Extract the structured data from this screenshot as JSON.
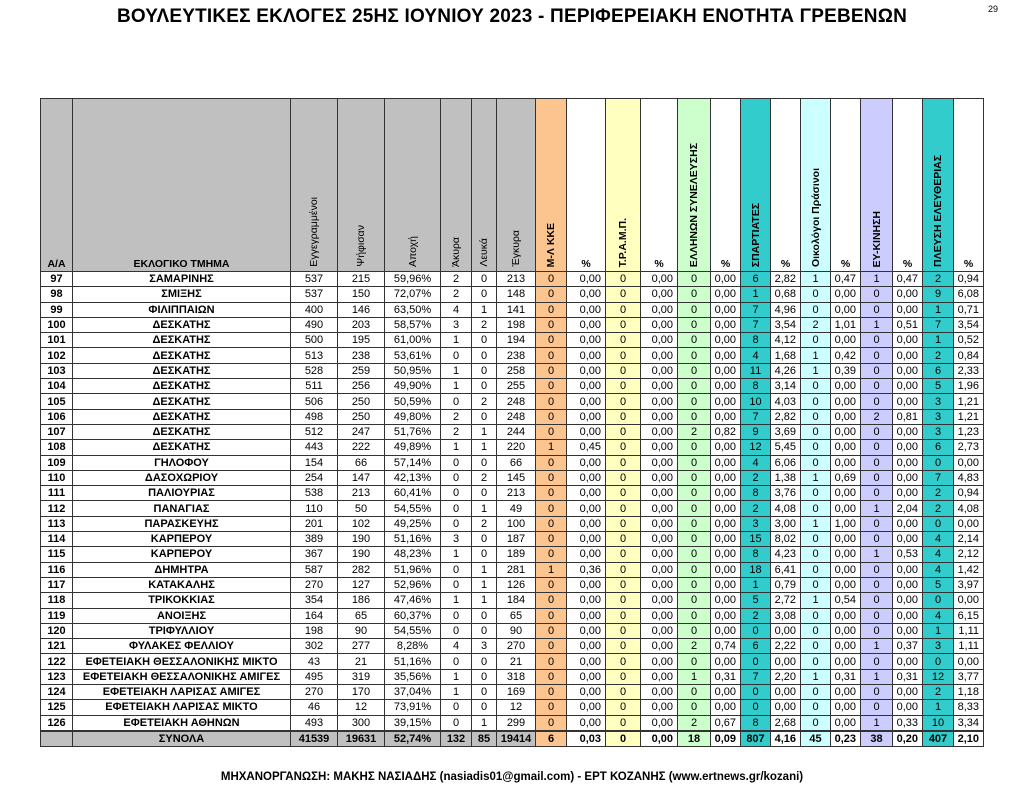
{
  "title": "ΒΟΥΛΕΥΤΙΚΕΣ ΕΚΛΟΓΕΣ 25ΗΣ ΙΟΥΝΙΟΥ 2023 - ΠΕΡΙΦΕΡΕΙΑΚΗ ΕΝΟΤΗΤΑ ΓΡΕΒΕΝΩΝ",
  "page_number": "29",
  "footer": "ΜΗΧΑΝΟΡΓΑΝΩΣΗ: ΜΑΚΗΣ ΝΑΣΙΑΔΗΣ (nasiadis01@gmail.com) - ΕΡΤ ΚΟΖΑΝΗΣ (www.ertnews.gr/kozani)",
  "colors": {
    "header": "#c0c0c0",
    "mlkke": "#fcc48e",
    "tramp": "#ffffc0",
    "ellinon": "#ccffcc",
    "spartiates": "#33cccc",
    "oikologoi": "#ccffff",
    "eykinisi": "#ccccff",
    "pleusi": "#33cccc"
  },
  "headers": [
    "Α/Α",
    "ΕΚΛΟΓΙΚΟ ΤΜΗΜΑ",
    "Εγγεγραμμένοι",
    "Ψήφισαν",
    "Αποχή",
    "Άκυρα",
    "Λευκά",
    "Έγκυρα",
    "Μ-Λ ΚΚΕ",
    "%",
    "Τ.Ρ.Α.Μ.Π.",
    "%",
    "ΕΛΛΗΝΩΝ ΣΥΝΕΛΕΥΣΗΣ",
    "%",
    "ΣΠΑΡΤΙΑΤΕΣ",
    "%",
    "Οικολόγοι Πράσινοι",
    "%",
    "ΕΥ-ΚΙΝΗΣΗ",
    "%",
    "ΠΛΕΥΣΗ ΕΛΕΥΘΕΡΙΑΣ",
    "%"
  ],
  "rows": [
    [
      "97",
      "ΣΑΜΑΡΙΝΗΣ",
      "537",
      "215",
      "59,96%",
      "2",
      "0",
      "213",
      "0",
      "0,00",
      "0",
      "0,00",
      "0",
      "0,00",
      "6",
      "2,82",
      "1",
      "0,47",
      "1",
      "0,47",
      "2",
      "0,94"
    ],
    [
      "98",
      "ΣΜΙΞΗΣ",
      "537",
      "150",
      "72,07%",
      "2",
      "0",
      "148",
      "0",
      "0,00",
      "0",
      "0,00",
      "0",
      "0,00",
      "1",
      "0,68",
      "0",
      "0,00",
      "0",
      "0,00",
      "9",
      "6,08"
    ],
    [
      "99",
      "ΦΙΛΙΠΠΑΙΩΝ",
      "400",
      "146",
      "63,50%",
      "4",
      "1",
      "141",
      "0",
      "0,00",
      "0",
      "0,00",
      "0",
      "0,00",
      "7",
      "4,96",
      "0",
      "0,00",
      "0",
      "0,00",
      "1",
      "0,71"
    ],
    [
      "100",
      "ΔΕΣΚΑΤΗΣ",
      "490",
      "203",
      "58,57%",
      "3",
      "2",
      "198",
      "0",
      "0,00",
      "0",
      "0,00",
      "0",
      "0,00",
      "7",
      "3,54",
      "2",
      "1,01",
      "1",
      "0,51",
      "7",
      "3,54"
    ],
    [
      "101",
      "ΔΕΣΚΑΤΗΣ",
      "500",
      "195",
      "61,00%",
      "1",
      "0",
      "194",
      "0",
      "0,00",
      "0",
      "0,00",
      "0",
      "0,00",
      "8",
      "4,12",
      "0",
      "0,00",
      "0",
      "0,00",
      "1",
      "0,52"
    ],
    [
      "102",
      "ΔΕΣΚΑΤΗΣ",
      "513",
      "238",
      "53,61%",
      "0",
      "0",
      "238",
      "0",
      "0,00",
      "0",
      "0,00",
      "0",
      "0,00",
      "4",
      "1,68",
      "1",
      "0,42",
      "0",
      "0,00",
      "2",
      "0,84"
    ],
    [
      "103",
      "ΔΕΣΚΑΤΗΣ",
      "528",
      "259",
      "50,95%",
      "1",
      "0",
      "258",
      "0",
      "0,00",
      "0",
      "0,00",
      "0",
      "0,00",
      "11",
      "4,26",
      "1",
      "0,39",
      "0",
      "0,00",
      "6",
      "2,33"
    ],
    [
      "104",
      "ΔΕΣΚΑΤΗΣ",
      "511",
      "256",
      "49,90%",
      "1",
      "0",
      "255",
      "0",
      "0,00",
      "0",
      "0,00",
      "0",
      "0,00",
      "8",
      "3,14",
      "0",
      "0,00",
      "0",
      "0,00",
      "5",
      "1,96"
    ],
    [
      "105",
      "ΔΕΣΚΑΤΗΣ",
      "506",
      "250",
      "50,59%",
      "0",
      "2",
      "248",
      "0",
      "0,00",
      "0",
      "0,00",
      "0",
      "0,00",
      "10",
      "4,03",
      "0",
      "0,00",
      "0",
      "0,00",
      "3",
      "1,21"
    ],
    [
      "106",
      "ΔΕΣΚΑΤΗΣ",
      "498",
      "250",
      "49,80%",
      "2",
      "0",
      "248",
      "0",
      "0,00",
      "0",
      "0,00",
      "0",
      "0,00",
      "7",
      "2,82",
      "0",
      "0,00",
      "2",
      "0,81",
      "3",
      "1,21"
    ],
    [
      "107",
      "ΔΕΣΚΑΤΗΣ",
      "512",
      "247",
      "51,76%",
      "2",
      "1",
      "244",
      "0",
      "0,00",
      "0",
      "0,00",
      "2",
      "0,82",
      "9",
      "3,69",
      "0",
      "0,00",
      "0",
      "0,00",
      "3",
      "1,23"
    ],
    [
      "108",
      "ΔΕΣΚΑΤΗΣ",
      "443",
      "222",
      "49,89%",
      "1",
      "1",
      "220",
      "1",
      "0,45",
      "0",
      "0,00",
      "0",
      "0,00",
      "12",
      "5,45",
      "0",
      "0,00",
      "0",
      "0,00",
      "6",
      "2,73"
    ],
    [
      "109",
      "ΓΗΛΟΦΟΥ",
      "154",
      "66",
      "57,14%",
      "0",
      "0",
      "66",
      "0",
      "0,00",
      "0",
      "0,00",
      "0",
      "0,00",
      "4",
      "6,06",
      "0",
      "0,00",
      "0",
      "0,00",
      "0",
      "0,00"
    ],
    [
      "110",
      "ΔΑΣΟΧΩΡΙΟΥ",
      "254",
      "147",
      "42,13%",
      "0",
      "2",
      "145",
      "0",
      "0,00",
      "0",
      "0,00",
      "0",
      "0,00",
      "2",
      "1,38",
      "1",
      "0,69",
      "0",
      "0,00",
      "7",
      "4,83"
    ],
    [
      "111",
      "ΠΑΛΙΟΥΡΙΑΣ",
      "538",
      "213",
      "60,41%",
      "0",
      "0",
      "213",
      "0",
      "0,00",
      "0",
      "0,00",
      "0",
      "0,00",
      "8",
      "3,76",
      "0",
      "0,00",
      "0",
      "0,00",
      "2",
      "0,94"
    ],
    [
      "112",
      "ΠΑΝΑΓΙΑΣ",
      "110",
      "50",
      "54,55%",
      "0",
      "1",
      "49",
      "0",
      "0,00",
      "0",
      "0,00",
      "0",
      "0,00",
      "2",
      "4,08",
      "0",
      "0,00",
      "1",
      "2,04",
      "2",
      "4,08"
    ],
    [
      "113",
      "ΠΑΡΑΣΚΕΥΗΣ",
      "201",
      "102",
      "49,25%",
      "0",
      "2",
      "100",
      "0",
      "0,00",
      "0",
      "0,00",
      "0",
      "0,00",
      "3",
      "3,00",
      "1",
      "1,00",
      "0",
      "0,00",
      "0",
      "0,00"
    ],
    [
      "114",
      "ΚΑΡΠΕΡΟΥ",
      "389",
      "190",
      "51,16%",
      "3",
      "0",
      "187",
      "0",
      "0,00",
      "0",
      "0,00",
      "0",
      "0,00",
      "15",
      "8,02",
      "0",
      "0,00",
      "0",
      "0,00",
      "4",
      "2,14"
    ],
    [
      "115",
      "ΚΑΡΠΕΡΟΥ",
      "367",
      "190",
      "48,23%",
      "1",
      "0",
      "189",
      "0",
      "0,00",
      "0",
      "0,00",
      "0",
      "0,00",
      "8",
      "4,23",
      "0",
      "0,00",
      "1",
      "0,53",
      "4",
      "2,12"
    ],
    [
      "116",
      "ΔΗΜΗΤΡΑ",
      "587",
      "282",
      "51,96%",
      "0",
      "1",
      "281",
      "1",
      "0,36",
      "0",
      "0,00",
      "0",
      "0,00",
      "18",
      "6,41",
      "0",
      "0,00",
      "0",
      "0,00",
      "4",
      "1,42"
    ],
    [
      "117",
      "ΚΑΤΑΚΑΛΗΣ",
      "270",
      "127",
      "52,96%",
      "0",
      "1",
      "126",
      "0",
      "0,00",
      "0",
      "0,00",
      "0",
      "0,00",
      "1",
      "0,79",
      "0",
      "0,00",
      "0",
      "0,00",
      "5",
      "3,97"
    ],
    [
      "118",
      "ΤΡΙΚΟΚΚΙΑΣ",
      "354",
      "186",
      "47,46%",
      "1",
      "1",
      "184",
      "0",
      "0,00",
      "0",
      "0,00",
      "0",
      "0,00",
      "5",
      "2,72",
      "1",
      "0,54",
      "0",
      "0,00",
      "0",
      "0,00"
    ],
    [
      "119",
      "ΑΝΟΙΞΗΣ",
      "164",
      "65",
      "60,37%",
      "0",
      "0",
      "65",
      "0",
      "0,00",
      "0",
      "0,00",
      "0",
      "0,00",
      "2",
      "3,08",
      "0",
      "0,00",
      "0",
      "0,00",
      "4",
      "6,15"
    ],
    [
      "120",
      "ΤΡΙΦΥΛΛΙΟΥ",
      "198",
      "90",
      "54,55%",
      "0",
      "0",
      "90",
      "0",
      "0,00",
      "0",
      "0,00",
      "0",
      "0,00",
      "0",
      "0,00",
      "0",
      "0,00",
      "0",
      "0,00",
      "1",
      "1,11"
    ],
    [
      "121",
      "ΦΥΛΑΚΕΣ ΦΕΛΛΙΟΥ",
      "302",
      "277",
      "8,28%",
      "4",
      "3",
      "270",
      "0",
      "0,00",
      "0",
      "0,00",
      "2",
      "0,74",
      "6",
      "2,22",
      "0",
      "0,00",
      "1",
      "0,37",
      "3",
      "1,11"
    ],
    [
      "122",
      "ΕΦΕΤΕΙΑΚΗ ΘΕΣΣΑΛΟΝΙΚΗΣ ΜΙΚΤΟ",
      "43",
      "21",
      "51,16%",
      "0",
      "0",
      "21",
      "0",
      "0,00",
      "0",
      "0,00",
      "0",
      "0,00",
      "0",
      "0,00",
      "0",
      "0,00",
      "0",
      "0,00",
      "0",
      "0,00"
    ],
    [
      "123",
      "ΕΦΕΤΕΙΑΚΗ ΘΕΣΣΑΛΟΝΙΚΗΣ ΑΜΙΓΕΣ",
      "495",
      "319",
      "35,56%",
      "1",
      "0",
      "318",
      "0",
      "0,00",
      "0",
      "0,00",
      "1",
      "0,31",
      "7",
      "2,20",
      "1",
      "0,31",
      "1",
      "0,31",
      "12",
      "3,77"
    ],
    [
      "124",
      "ΕΦΕΤΕΙΑΚΗ ΛΑΡΙΣΑΣ ΑΜΙΓΕΣ",
      "270",
      "170",
      "37,04%",
      "1",
      "0",
      "169",
      "0",
      "0,00",
      "0",
      "0,00",
      "0",
      "0,00",
      "0",
      "0,00",
      "0",
      "0,00",
      "0",
      "0,00",
      "2",
      "1,18"
    ],
    [
      "125",
      "ΕΦΕΤΕΙΑΚΗ ΛΑΡΙΣΑΣ ΜΙΚΤΟ",
      "46",
      "12",
      "73,91%",
      "0",
      "0",
      "12",
      "0",
      "0,00",
      "0",
      "0,00",
      "0",
      "0,00",
      "0",
      "0,00",
      "0",
      "0,00",
      "0",
      "0,00",
      "1",
      "8,33"
    ],
    [
      "126",
      "ΕΦΕΤΕΙΑΚΗ ΑΘΗΝΩΝ",
      "493",
      "300",
      "39,15%",
      "0",
      "1",
      "299",
      "0",
      "0,00",
      "0",
      "0,00",
      "2",
      "0,67",
      "8",
      "2,68",
      "0",
      "0,00",
      "1",
      "0,33",
      "10",
      "3,34"
    ]
  ],
  "totals": [
    "",
    "ΣΥΝΟΛΑ",
    "41539",
    "19631",
    "52,74%",
    "132",
    "85",
    "19414",
    "6",
    "0,03",
    "0",
    "0,00",
    "18",
    "0,09",
    "807",
    "4,16",
    "45",
    "0,23",
    "38",
    "0,20",
    "407",
    "2,10"
  ]
}
